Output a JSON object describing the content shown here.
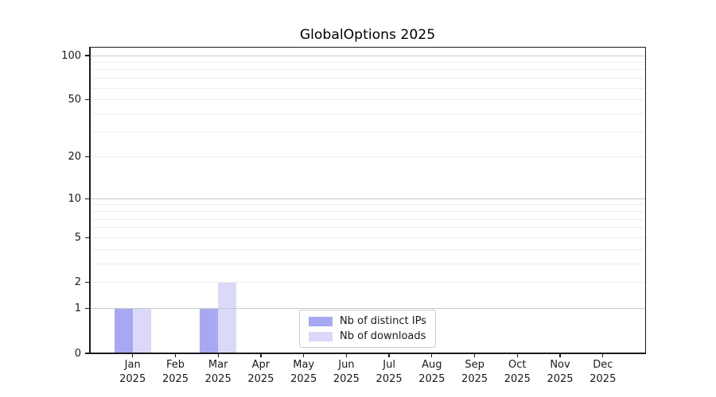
{
  "chart_data": {
    "type": "bar",
    "title": "GlobalOptions 2025",
    "categories": [
      "Jan 2025",
      "Feb 2025",
      "Mar 2025",
      "Apr 2025",
      "May 2025",
      "Jun 2025",
      "Jul 2025",
      "Aug 2025",
      "Sep 2025",
      "Oct 2025",
      "Nov 2025",
      "Dec 2025"
    ],
    "x_tick_line1": [
      "Jan",
      "Feb",
      "Mar",
      "Apr",
      "May",
      "Jun",
      "Jul",
      "Aug",
      "Sep",
      "Oct",
      "Nov",
      "Dec"
    ],
    "x_tick_line2": "2025",
    "series": [
      {
        "name": "Nb of distinct IPs",
        "color": "#a7a7f2",
        "values": [
          1,
          0,
          1,
          0,
          0,
          0,
          0,
          0,
          0,
          0,
          0,
          0
        ]
      },
      {
        "name": "Nb of downloads",
        "color": "#dadaf8",
        "values": [
          1,
          0,
          2,
          0,
          0,
          0,
          0,
          0,
          0,
          0,
          0,
          0
        ]
      }
    ],
    "xlabel": "",
    "ylabel": "",
    "y_axis": {
      "scale": "log1p",
      "range": [
        0,
        100
      ],
      "ticks": [
        0,
        1,
        2,
        5,
        10,
        20,
        50,
        100
      ],
      "major_grid": [
        1,
        10,
        100
      ],
      "minor_grid": [
        2,
        3,
        4,
        5,
        6,
        7,
        8,
        9,
        20,
        30,
        40,
        50,
        60,
        70,
        80,
        90
      ]
    },
    "grid": true,
    "legend": {
      "position": "lower center",
      "entries": [
        "Nb of distinct IPs",
        "Nb of downloads"
      ]
    }
  },
  "colors": {
    "bar_dark": "#a7a7f2",
    "bar_light": "#dadaf8",
    "major_grid": "#c9c9c9",
    "minor_grid": "#ededed",
    "axis": "#1a1a1a",
    "text": "#1a1a1a",
    "legend_border": "#cccccc",
    "background": "#ffffff"
  }
}
